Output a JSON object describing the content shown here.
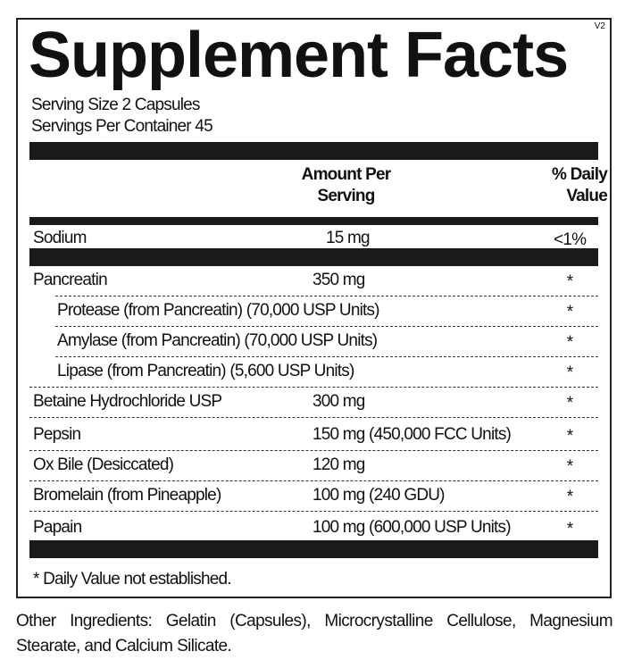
{
  "label": {
    "title": "Supplement Facts",
    "version": "V2",
    "serving_size": "Serving Size  2 Capsules",
    "servings_per_container": "Servings Per Container  45",
    "header": {
      "amount_line1": "Amount Per",
      "amount_line2": "Serving",
      "dv_line1": "% Daily",
      "dv_line2": "Value"
    },
    "sodium": {
      "name": "Sodium",
      "amount": "15 mg",
      "dv": "<1%"
    },
    "rows": [
      {
        "name": "Pancreatin",
        "amount": "350 mg",
        "dv": "*"
      },
      {
        "name": "Protease (from Pancreatin) (70,000 USP Units)",
        "amount": "",
        "dv": "*"
      },
      {
        "name": "Amylase (from Pancreatin) (70,000 USP Units)",
        "amount": "",
        "dv": "*"
      },
      {
        "name": "Lipase (from Pancreatin) (5,600 USP Units)",
        "amount": "",
        "dv": "*"
      },
      {
        "name": "Betaine Hydrochloride USP",
        "amount": "300 mg",
        "dv": "*"
      },
      {
        "name": "Pepsin",
        "amount": "150 mg (450,000 FCC Units)",
        "dv": "*"
      },
      {
        "name": "Ox Bile (Desiccated)",
        "amount": "120 mg",
        "dv": "*"
      },
      {
        "name": "Bromelain (from Pineapple)",
        "amount": "100 mg (240 GDU)",
        "dv": "*"
      },
      {
        "name": "Papain",
        "amount": "100 mg (600,000 USP Units)",
        "dv": "*"
      }
    ],
    "footnote": "* Daily Value not established."
  },
  "other_ingredients": "Other Ingredients: Gelatin (Capsules), Microcrystalline Cellulose, Magnesium Stearate, and Calcium Silicate."
}
